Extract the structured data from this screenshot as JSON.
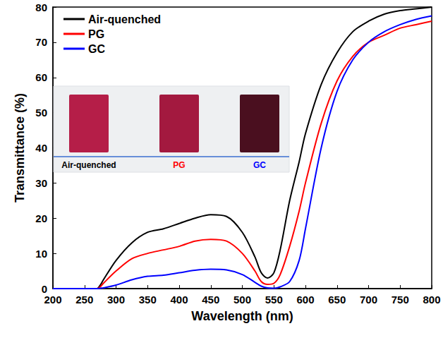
{
  "chart_data": {
    "type": "line",
    "x_label": "Wavelength (nm)",
    "y_label": "Transmittance (%)",
    "x": [
      200,
      250,
      270,
      275,
      280,
      300,
      325,
      350,
      375,
      400,
      425,
      450,
      475,
      500,
      520,
      530,
      540,
      550,
      560,
      575,
      590,
      600,
      625,
      650,
      675,
      700,
      725,
      750,
      775,
      800
    ],
    "series": [
      {
        "name": "Air-quenched",
        "color": "#000000",
        "values": [
          0,
          0,
          0,
          1,
          2.5,
          8,
          13,
          16,
          17,
          18.5,
          20,
          21,
          20.5,
          16,
          9,
          4.5,
          3,
          4.5,
          11,
          25,
          36,
          44,
          58,
          67,
          73,
          76,
          78,
          79,
          79.5,
          80
        ]
      },
      {
        "name": "PG",
        "color": "#ff0000",
        "values": [
          0,
          0,
          0,
          0.5,
          1.5,
          5,
          8.5,
          10,
          11,
          12,
          13.5,
          14,
          13.5,
          10,
          5,
          2,
          1.2,
          1.5,
          4,
          12,
          22,
          30,
          47,
          59,
          66,
          70,
          72,
          74,
          75,
          76
        ]
      },
      {
        "name": "GC",
        "color": "#0000ff",
        "values": [
          0,
          0,
          0,
          0.1,
          0.2,
          1,
          2.5,
          3.5,
          3.8,
          4.5,
          5.2,
          5.5,
          5.3,
          4,
          1.8,
          0.7,
          0.2,
          0.1,
          0.5,
          2,
          8,
          17,
          40,
          56,
          65,
          70,
          73,
          75,
          76.5,
          77.5
        ]
      }
    ],
    "xlim": [
      200,
      800
    ],
    "xticks": [
      200,
      250,
      300,
      350,
      400,
      450,
      500,
      550,
      600,
      650,
      700,
      750,
      800
    ],
    "ylim": [
      0,
      80
    ],
    "yticks": [
      0,
      10,
      20,
      30,
      40,
      50,
      60,
      70,
      80
    ],
    "grid": false,
    "legend": "upper left"
  }
}
